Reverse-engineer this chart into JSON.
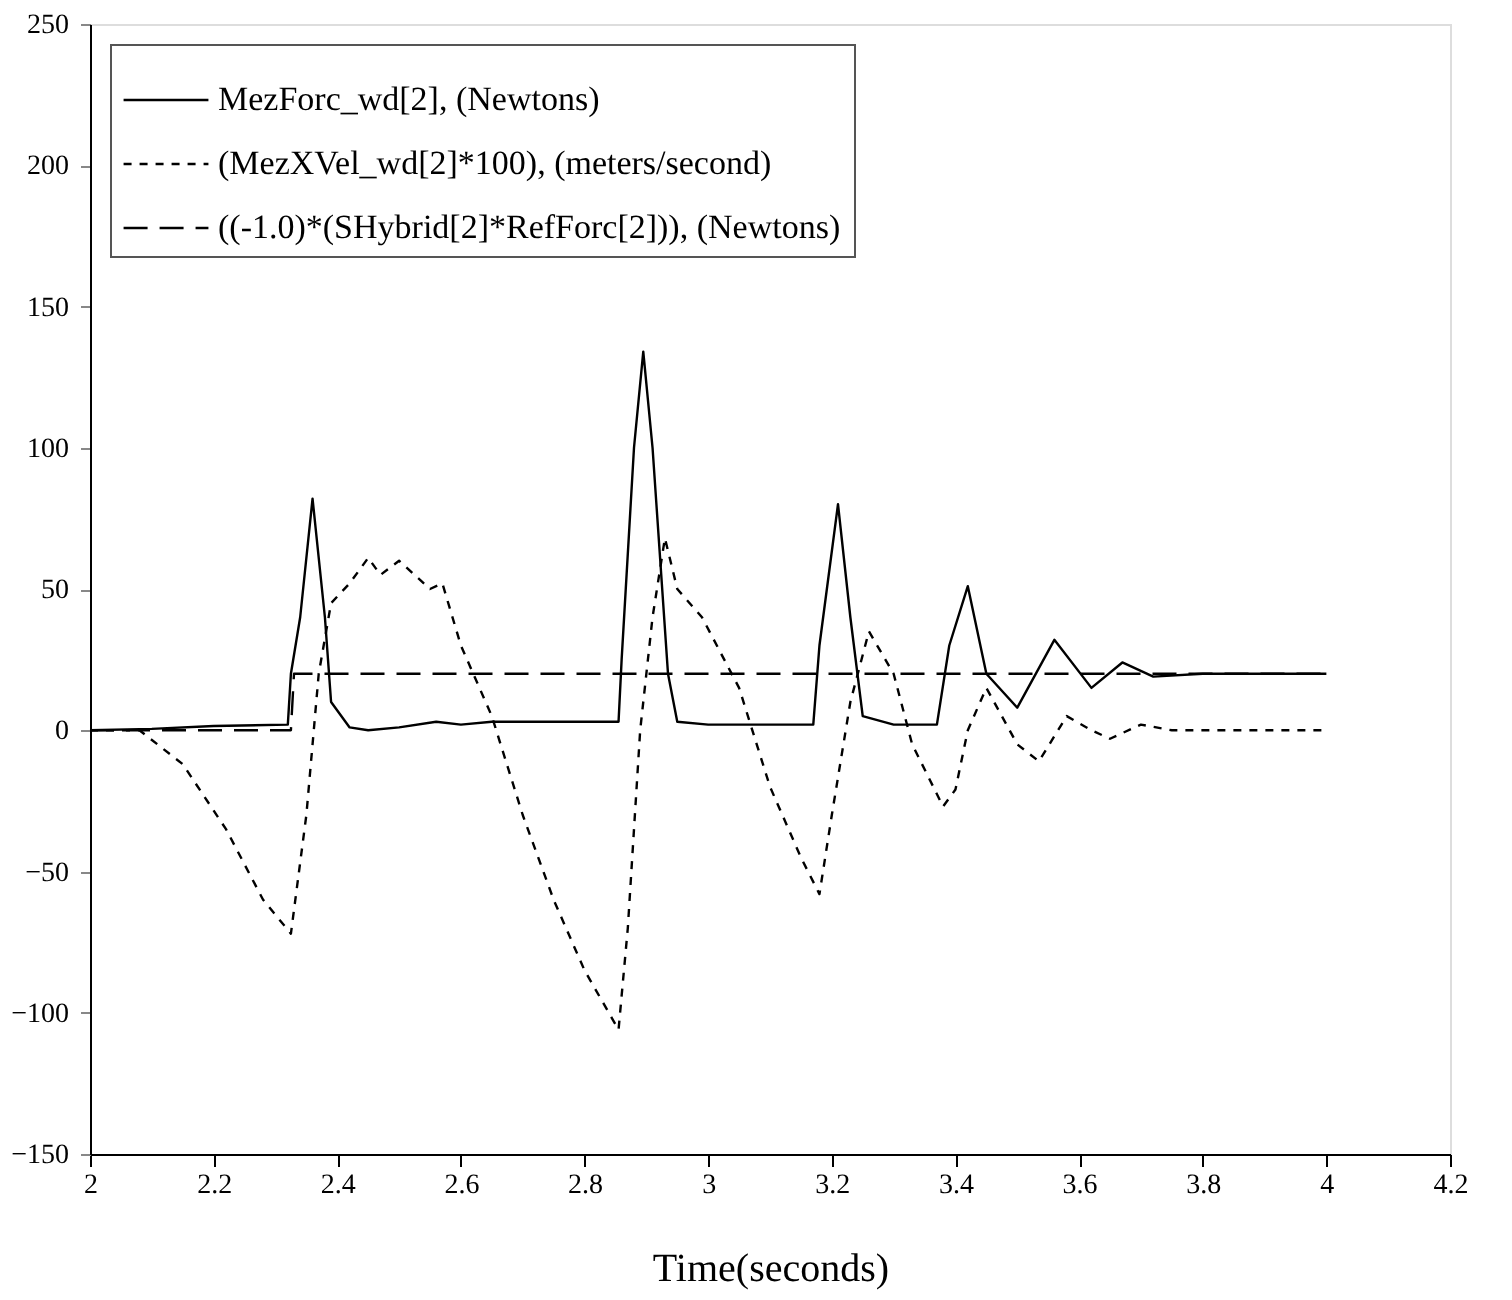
{
  "chart_data": {
    "type": "line",
    "xlabel": "Time(seconds)",
    "xlim": [
      2,
      4.2
    ],
    "xticks": [
      2,
      2.2,
      2.4,
      2.6,
      2.8,
      3,
      3.2,
      3.4,
      3.6,
      3.8,
      4,
      4.2
    ],
    "ylim": [
      -150,
      250
    ],
    "yticks": [
      -150,
      -100,
      -50,
      0,
      50,
      100,
      150,
      200,
      250
    ],
    "grid": false,
    "legend": "top left",
    "marker": "none",
    "series": [
      {
        "name": "MezForc_wd[2], (Newtons)",
        "color": "#000000",
        "line_style": "solid",
        "x": [
          2.0,
          2.1,
          2.2,
          2.32,
          2.325,
          2.34,
          2.36,
          2.38,
          2.39,
          2.42,
          2.45,
          2.5,
          2.56,
          2.6,
          2.65,
          2.8,
          2.855,
          2.86,
          2.88,
          2.895,
          2.91,
          2.935,
          2.95,
          3.0,
          3.17,
          3.18,
          3.21,
          3.23,
          3.25,
          3.3,
          3.37,
          3.39,
          3.42,
          3.45,
          3.5,
          3.56,
          3.62,
          3.67,
          3.72,
          3.8,
          4.0
        ],
        "values": [
          0,
          0.5,
          1.5,
          2,
          20,
          40,
          82,
          40,
          10,
          1,
          0,
          1,
          3,
          2,
          3,
          3,
          3,
          25,
          100,
          134,
          100,
          20,
          3,
          2,
          2,
          30,
          80,
          40,
          5,
          2,
          2,
          30,
          51,
          20,
          8,
          32,
          15,
          24,
          19,
          20,
          20
        ]
      },
      {
        "name": "(MezXVel_wd[2]*100), (meters/second)",
        "color": "#000000",
        "line_style": "dotted",
        "x": [
          2.0,
          2.08,
          2.15,
          2.22,
          2.28,
          2.325,
          2.35,
          2.37,
          2.39,
          2.42,
          2.45,
          2.47,
          2.5,
          2.55,
          2.57,
          2.6,
          2.65,
          2.7,
          2.75,
          2.8,
          2.855,
          2.87,
          2.89,
          2.91,
          2.93,
          2.95,
          2.99,
          3.05,
          3.1,
          3.15,
          3.18,
          3.2,
          3.23,
          3.26,
          3.3,
          3.33,
          3.38,
          3.4,
          3.42,
          3.45,
          3.5,
          3.535,
          3.58,
          3.62,
          3.65,
          3.7,
          3.75,
          4.0
        ],
        "values": [
          0,
          0,
          -12,
          -35,
          -60,
          -72,
          -30,
          20,
          45,
          52,
          61,
          55,
          60,
          50,
          52,
          30,
          5,
          -30,
          -60,
          -85,
          -106,
          -70,
          0,
          40,
          68,
          50,
          40,
          15,
          -20,
          -45,
          -58,
          -30,
          10,
          35,
          20,
          -5,
          -27,
          -21,
          0,
          15,
          -5,
          -11,
          5,
          0,
          -3,
          2,
          0,
          0
        ]
      },
      {
        "name": "((-1.0)*(SHybrid[2]*RefForc[2])), (Newtons)",
        "color": "#000000",
        "line_style": "dashed",
        "x": [
          2.0,
          2.325,
          2.33,
          4.0
        ],
        "values": [
          0,
          0,
          20,
          20
        ]
      }
    ]
  }
}
